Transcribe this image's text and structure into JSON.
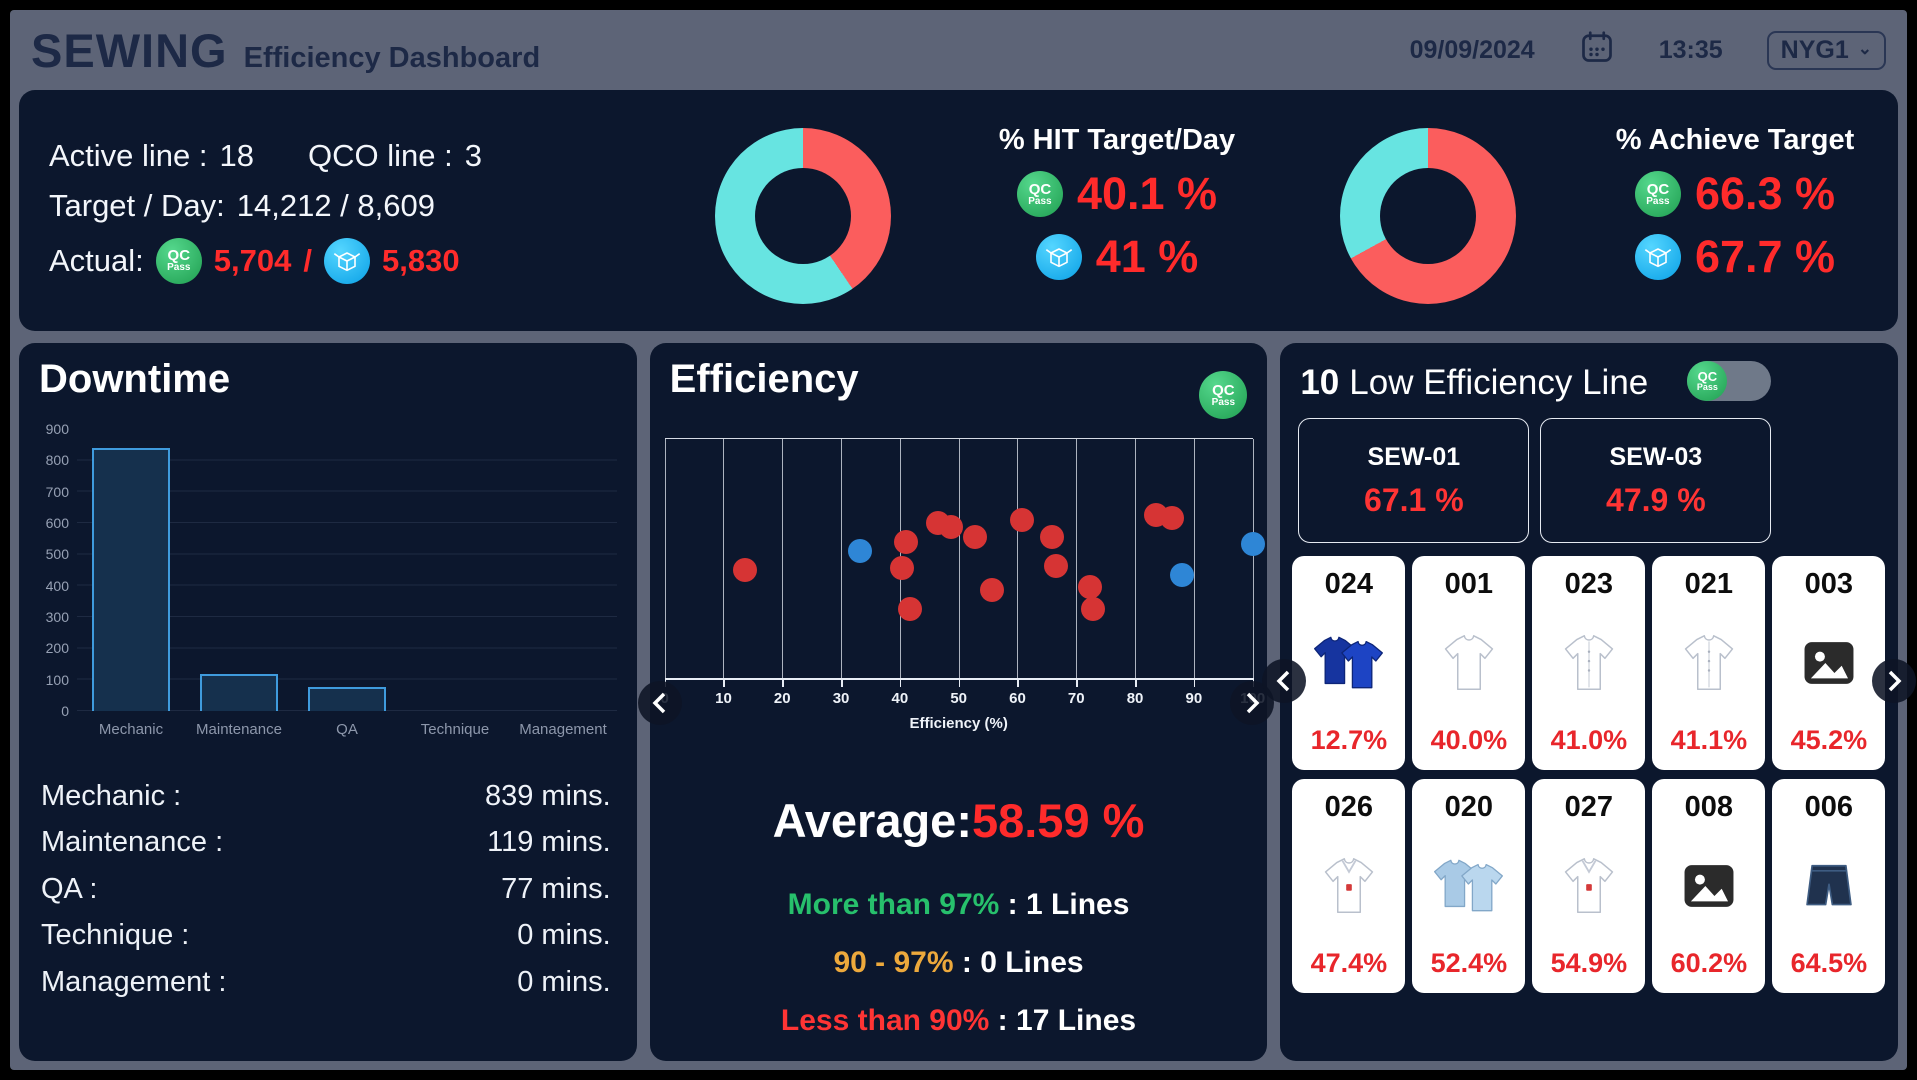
{
  "header": {
    "title": "SEWING",
    "subtitle": "Efficiency Dashboard",
    "date": "09/09/2024",
    "time": "13:35",
    "site": "NYG1",
    "site_caret": "⌄"
  },
  "summary": {
    "line1_label_a": "Active line :",
    "line1_value_a": "18",
    "line1_label_b": "QCO line :",
    "line1_value_b": "3",
    "line2_label": "Target / Day:",
    "line2_value": "14,212 / 8,609",
    "line3_label": "Actual:",
    "actual_qc": "5,704",
    "actual_sep": "/",
    "actual_pack": "5,830",
    "hit": {
      "title": "% HIT Target/Day",
      "qc_value": "40.1 %",
      "pack_value": "41 %"
    },
    "achieve": {
      "title": "% Achieve Target",
      "qc_value": "66.3 %",
      "pack_value": "67.7 %"
    }
  },
  "downtime": {
    "title": "Downtime",
    "rows": [
      {
        "label": "Mechanic :",
        "value": "839 mins."
      },
      {
        "label": "Maintenance :",
        "value": "119 mins."
      },
      {
        "label": "QA :",
        "value": "77 mins."
      },
      {
        "label": "Technique :",
        "value": "0 mins."
      },
      {
        "label": "Management :",
        "value": "0 mins."
      }
    ]
  },
  "efficiency": {
    "title": "Efficiency",
    "average_label": "Average:",
    "average_value": "58.59 %",
    "xlabel": "Efficiency (%)",
    "thresholds": [
      {
        "label": "More than 97%",
        "sep": " : ",
        "count": "1 Lines",
        "color": "#27c06c"
      },
      {
        "label": "90 - 97%",
        "sep": " : ",
        "count": "0 Lines",
        "color": "#eda93c"
      },
      {
        "label": "Less than 90%",
        "sep": " : ",
        "count": "17 Lines",
        "color": "#ff3434"
      }
    ]
  },
  "low_lines": {
    "count": "10",
    "title": "Low Efficiency Line",
    "boxes": [
      {
        "name": "SEW-01",
        "value": "67.1 %"
      },
      {
        "name": "SEW-03",
        "value": "47.9 %"
      }
    ],
    "cards": [
      {
        "code": "024",
        "pct": "12.7%",
        "icon": "tee2",
        "fill": "#16349f",
        "fill2": "#1d44c4",
        "stroke": "#0d2578"
      },
      {
        "code": "001",
        "pct": "40.0%",
        "icon": "tee",
        "fill": "#ffffff",
        "stroke": "#b9c0cc"
      },
      {
        "code": "023",
        "pct": "41.0%",
        "icon": "shirt",
        "fill": "#ffffff",
        "stroke": "#b9c0cc"
      },
      {
        "code": "021",
        "pct": "41.1%",
        "icon": "shirt",
        "fill": "#ffffff",
        "stroke": "#b9c0cc"
      },
      {
        "code": "003",
        "pct": "45.2%",
        "icon": "image"
      },
      {
        "code": "026",
        "pct": "47.4%",
        "icon": "vneck",
        "fill": "#ffffff",
        "stroke": "#b9c0cc"
      },
      {
        "code": "020",
        "pct": "52.4%",
        "icon": "tee2",
        "fill": "#a9cae6",
        "fill2": "#bad7ee",
        "stroke": "#82a7c8"
      },
      {
        "code": "027",
        "pct": "54.9%",
        "icon": "vneck",
        "fill": "#ffffff",
        "stroke": "#b9c0cc"
      },
      {
        "code": "008",
        "pct": "60.2%",
        "icon": "image"
      },
      {
        "code": "006",
        "pct": "64.5%",
        "icon": "shorts",
        "fill": "#20324e",
        "stroke": "#3e5c82"
      }
    ]
  },
  "icons": {
    "qc_badge_line1": "QC",
    "qc_badge_line2": "Pass"
  },
  "colors": {
    "accent_red": "#ff2b2b",
    "donut_red": "#fb5d5d",
    "donut_teal": "#67e4e1",
    "dot_red": "#d63434",
    "dot_blue": "#2e86d6",
    "card_pct_red": "#e8262b"
  },
  "chart_data": [
    {
      "id": "hit-donut",
      "type": "pie",
      "title": "% HIT Target/Day",
      "slices": [
        {
          "label": "hit",
          "value": 40.5,
          "color": "#fb5d5d"
        },
        {
          "label": "remaining",
          "value": 59.5,
          "color": "#67e4e1"
        }
      ]
    },
    {
      "id": "achieve-donut",
      "type": "pie",
      "title": "% Achieve Target",
      "slices": [
        {
          "label": "achieved",
          "value": 67,
          "color": "#fb5d5d"
        },
        {
          "label": "remaining",
          "value": 33,
          "color": "#67e4e1"
        }
      ]
    },
    {
      "id": "downtime-bar",
      "type": "bar",
      "title": "Downtime",
      "categories": [
        "Mechanic",
        "Maintenance",
        "QA",
        "Technique",
        "Management"
      ],
      "values": [
        839,
        119,
        77,
        0,
        0
      ],
      "unit": "mins",
      "ylim": [
        0,
        900
      ],
      "ytick_step": 100,
      "bar_fill": "#15304d",
      "bar_border": "#3f9bdd"
    },
    {
      "id": "efficiency-scatter",
      "type": "scatter",
      "xlabel": "Efficiency (%)",
      "xlim": [
        0,
        100
      ],
      "xtick_step": 10,
      "average": 58.59,
      "y_note": "y is visual jitter only, fraction of plot height from top",
      "series": [
        {
          "name": "lines",
          "color": "#d63434",
          "points": [
            {
              "x": 13.6,
              "y": 0.55
            },
            {
              "x": 40.4,
              "y": 0.54
            },
            {
              "x": 41.0,
              "y": 0.43
            },
            {
              "x": 41.8,
              "y": 0.71
            },
            {
              "x": 46.5,
              "y": 0.35
            },
            {
              "x": 48.7,
              "y": 0.37
            },
            {
              "x": 52.8,
              "y": 0.41
            },
            {
              "x": 55.6,
              "y": 0.63
            },
            {
              "x": 60.8,
              "y": 0.34
            },
            {
              "x": 65.9,
              "y": 0.41
            },
            {
              "x": 66.6,
              "y": 0.53
            },
            {
              "x": 72.3,
              "y": 0.62
            },
            {
              "x": 72.8,
              "y": 0.71
            },
            {
              "x": 83.5,
              "y": 0.32
            },
            {
              "x": 86.2,
              "y": 0.33
            }
          ]
        },
        {
          "name": "qco-lines",
          "color": "#2e86d6",
          "points": [
            {
              "x": 33.2,
              "y": 0.47
            },
            {
              "x": 88.0,
              "y": 0.57
            },
            {
              "x": 100,
              "y": 0.44
            }
          ]
        }
      ]
    }
  ]
}
